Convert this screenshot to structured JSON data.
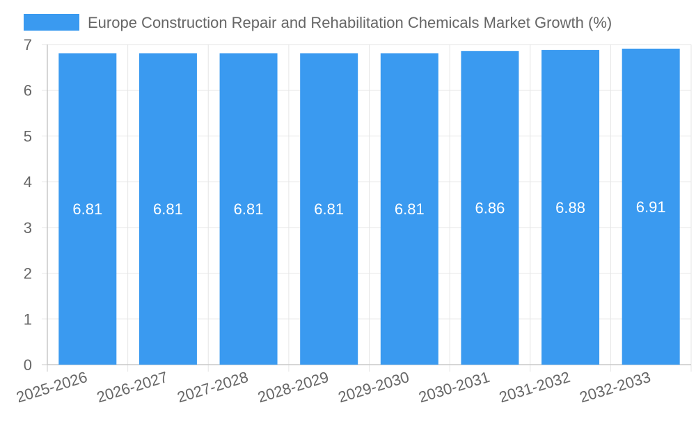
{
  "chart_data": {
    "type": "bar",
    "categories": [
      "2025-2026",
      "2026-2027",
      "2027-2028",
      "2028-2029",
      "2029-2030",
      "2030-2031",
      "2031-2032",
      "2032-2033"
    ],
    "series": [
      {
        "name": "Europe Construction Repair and Rehabilitation Chemicals Market Growth (%)",
        "values": [
          6.81,
          6.81,
          6.81,
          6.81,
          6.81,
          6.86,
          6.88,
          6.91
        ],
        "color": "#3a9af0"
      }
    ],
    "data_labels": [
      "6.81",
      "6.81",
      "6.81",
      "6.81",
      "6.81",
      "6.86",
      "6.88",
      "6.91"
    ],
    "y_ticks": [
      "0",
      "1",
      "2",
      "3",
      "4",
      "5",
      "6",
      "7"
    ],
    "ylim": [
      0,
      7
    ],
    "grid": true,
    "legend_position": "top",
    "colors": {
      "grid": "#e6e6e6",
      "axis": "#c8c8c8",
      "text": "#666666",
      "label": "#ffffff"
    }
  }
}
